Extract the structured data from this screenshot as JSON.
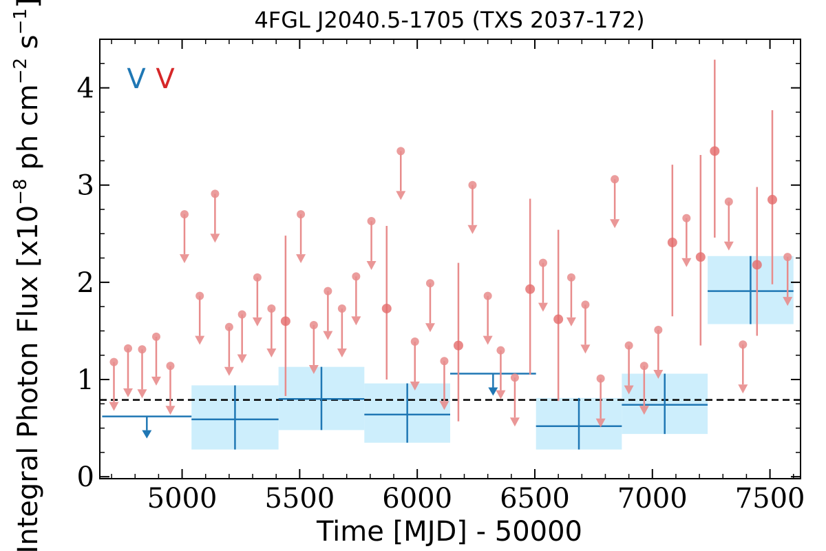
{
  "chart_data": {
    "type": "scatter",
    "title": "4FGL J2040.5-1705 (TXS 2037-172)",
    "xlabel": "Time [MJD] - 50000",
    "ylabel": "Integral Photon Flux [x10",
    "ylabel_exp1": "−8",
    "ylabel_mid": " ph cm",
    "ylabel_exp2": "−2",
    "ylabel_mid2": " s",
    "ylabel_exp3": "−1",
    "ylabel_end": "]",
    "xlim": [
      4650,
      7630
    ],
    "ylim": [
      -0.02,
      4.5
    ],
    "xticks": [
      5000,
      5500,
      6000,
      6500,
      7000,
      7500
    ],
    "yticks": [
      0,
      1,
      2,
      3,
      4
    ],
    "legend": [
      "V",
      "V"
    ],
    "baseline": 0.79,
    "colors": {
      "blue": "#1f77b4",
      "red": "#d62728",
      "band": "#cdeefc",
      "red_light": "#e88c8c"
    },
    "blue_bins": [
      {
        "x0": 4660,
        "x1": 5040,
        "y": 0.62,
        "upper_limit": true
      },
      {
        "x0": 5040,
        "x1": 5410,
        "y": 0.59,
        "ylo": 0.28,
        "yhi": 0.94
      },
      {
        "x0": 5410,
        "x1": 5775,
        "y": 0.8,
        "ylo": 0.48,
        "yhi": 1.13
      },
      {
        "x0": 5775,
        "x1": 6140,
        "y": 0.64,
        "ylo": 0.35,
        "yhi": 0.96
      },
      {
        "x0": 6140,
        "x1": 6505,
        "y": 1.06,
        "upper_limit": true
      },
      {
        "x0": 6505,
        "x1": 6870,
        "y": 0.52,
        "ylo": 0.28,
        "yhi": 0.81
      },
      {
        "x0": 6870,
        "x1": 7235,
        "y": 0.74,
        "ylo": 0.44,
        "yhi": 1.06
      },
      {
        "x0": 7235,
        "x1": 7600,
        "y": 1.91,
        "ylo": 1.57,
        "yhi": 2.27
      }
    ],
    "red_upper_limits": [
      {
        "x": 4710,
        "y": 1.18
      },
      {
        "x": 4770,
        "y": 1.32
      },
      {
        "x": 4830,
        "y": 1.31
      },
      {
        "x": 4890,
        "y": 1.44
      },
      {
        "x": 4950,
        "y": 1.14
      },
      {
        "x": 5010,
        "y": 2.7
      },
      {
        "x": 5075,
        "y": 1.86
      },
      {
        "x": 5140,
        "y": 2.91
      },
      {
        "x": 5200,
        "y": 1.54
      },
      {
        "x": 5255,
        "y": 1.67
      },
      {
        "x": 5320,
        "y": 2.05
      },
      {
        "x": 5380,
        "y": 1.73
      },
      {
        "x": 5505,
        "y": 2.7
      },
      {
        "x": 5560,
        "y": 1.56
      },
      {
        "x": 5620,
        "y": 1.91
      },
      {
        "x": 5680,
        "y": 1.73
      },
      {
        "x": 5740,
        "y": 2.06
      },
      {
        "x": 5805,
        "y": 2.63
      },
      {
        "x": 5930,
        "y": 3.35
      },
      {
        "x": 5990,
        "y": 1.39
      },
      {
        "x": 6055,
        "y": 1.99
      },
      {
        "x": 6115,
        "y": 1.19
      },
      {
        "x": 6235,
        "y": 3.0
      },
      {
        "x": 6300,
        "y": 1.86
      },
      {
        "x": 6355,
        "y": 1.3
      },
      {
        "x": 6415,
        "y": 1.02
      },
      {
        "x": 6535,
        "y": 2.2
      },
      {
        "x": 6655,
        "y": 2.05
      },
      {
        "x": 6715,
        "y": 1.77
      },
      {
        "x": 6780,
        "y": 1.01
      },
      {
        "x": 6840,
        "y": 3.06
      },
      {
        "x": 6900,
        "y": 1.35
      },
      {
        "x": 6965,
        "y": 1.14
      },
      {
        "x": 7025,
        "y": 1.51
      },
      {
        "x": 7145,
        "y": 2.66
      },
      {
        "x": 7325,
        "y": 2.83
      },
      {
        "x": 7385,
        "y": 1.36
      },
      {
        "x": 7575,
        "y": 2.26
      }
    ],
    "red_detections": [
      {
        "x": 5440,
        "y": 1.6,
        "ylo": 0.83,
        "yhi": 2.48
      },
      {
        "x": 5870,
        "y": 1.73,
        "ylo": 1.0,
        "yhi": 2.58
      },
      {
        "x": 6175,
        "y": 1.35,
        "ylo": 0.57,
        "yhi": 2.2
      },
      {
        "x": 6480,
        "y": 1.93,
        "ylo": 1.05,
        "yhi": 2.86
      },
      {
        "x": 6600,
        "y": 1.62,
        "ylo": 0.78,
        "yhi": 2.54
      },
      {
        "x": 7085,
        "y": 2.41,
        "ylo": 1.65,
        "yhi": 3.21
      },
      {
        "x": 7205,
        "y": 2.26,
        "ylo": 1.35,
        "yhi": 3.31
      },
      {
        "x": 7265,
        "y": 3.35,
        "ylo": 2.46,
        "yhi": 4.29
      },
      {
        "x": 7445,
        "y": 2.18,
        "ylo": 1.45,
        "yhi": 2.98
      },
      {
        "x": 7510,
        "y": 2.85,
        "ylo": 1.98,
        "yhi": 3.77
      }
    ],
    "grid": false
  }
}
